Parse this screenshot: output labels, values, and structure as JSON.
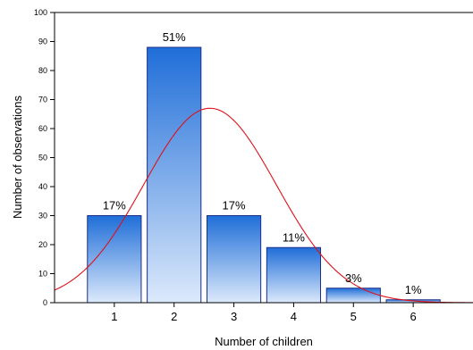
{
  "chart_data": {
    "type": "bar",
    "title": "",
    "xlabel": "Number of  children",
    "ylabel": "Number of observations",
    "categories": [
      "1",
      "2",
      "3",
      "4",
      "5",
      "6"
    ],
    "values": [
      30,
      88,
      30,
      19,
      5,
      1
    ],
    "data_labels": [
      "17%",
      "51%",
      "17%",
      "11%",
      "3%",
      "1%"
    ],
    "ylim": [
      0,
      100
    ],
    "yticks": [
      "0",
      "10",
      "20",
      "30",
      "40",
      "50",
      "60",
      "70",
      "80",
      "90",
      "100"
    ],
    "xlim": [
      0,
      7
    ],
    "grid": false,
    "legend": "none",
    "fit_curve": {
      "type": "normal",
      "mean": 2.6,
      "std": 1.11,
      "peak": 67,
      "color": "#e0101a"
    },
    "colors": {
      "bar_top": "#1f6ed8",
      "bar_bottom": "#dce9fb",
      "bar_stroke": "#1a2f8a",
      "axis": "#000000"
    }
  }
}
